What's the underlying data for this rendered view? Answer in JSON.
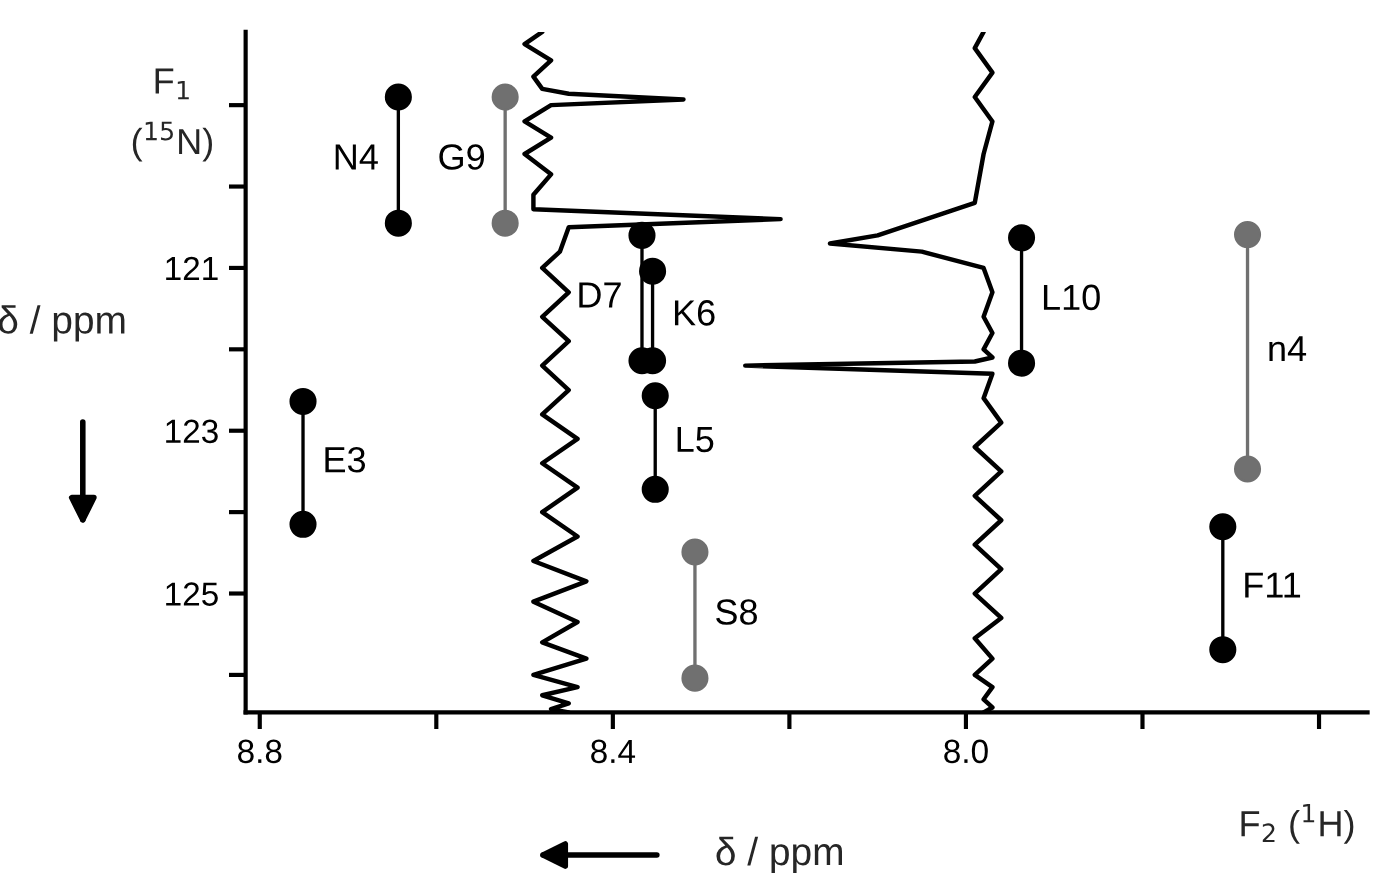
{
  "chart_data": {
    "type": "line",
    "xlabel": "δ / ppm",
    "ylabel": "δ / ppm",
    "xlim": [
      8.816,
      7.545
    ],
    "ylim": [
      126.46,
      118.1
    ],
    "xticks": [
      8.8,
      {
        "value": 8.6,
        "label": null
      },
      8.4,
      {
        "value": 8.2,
        "label": null
      },
      {
        "value": 8.0,
        "label": "8.0"
      },
      {
        "value": 7.8,
        "label": null
      },
      {
        "value": 7.6,
        "label": null
      }
    ],
    "yticks": [
      {
        "value": 119,
        "label": null
      },
      {
        "value": 120,
        "label": null
      },
      121,
      {
        "value": 122,
        "label": null
      },
      123,
      {
        "value": 124,
        "label": null
      },
      125,
      {
        "value": 126,
        "label": null
      }
    ],
    "series": [
      {
        "name": "N4",
        "color": "#000000",
        "marker": "circle",
        "x": [
          8.643,
          8.643
        ],
        "values": [
          118.9,
          120.45
        ]
      },
      {
        "name": "G9",
        "color": "#707070",
        "marker": "circle",
        "x": [
          8.522,
          8.522
        ],
        "values": [
          118.9,
          120.45
        ]
      },
      {
        "name": "E3",
        "color": "#000000",
        "marker": "circle",
        "x": [
          8.751,
          8.751
        ],
        "values": [
          122.64,
          124.15
        ]
      },
      {
        "name": "D7",
        "color": "#000000",
        "marker": "circle",
        "x": [
          8.367,
          8.367
        ],
        "values": [
          120.6,
          122.14
        ]
      },
      {
        "name": "K6",
        "color": "#000000",
        "marker": "circle",
        "x": [
          8.355,
          8.355
        ],
        "values": [
          121.04,
          122.14
        ]
      },
      {
        "name": "L5",
        "color": "#000000",
        "marker": "circle",
        "x": [
          8.352,
          8.352
        ],
        "values": [
          122.57,
          123.72
        ]
      },
      {
        "name": "S8",
        "color": "#707070",
        "marker": "circle",
        "x": [
          8.307,
          8.307
        ],
        "values": [
          124.49,
          126.04
        ]
      },
      {
        "name": "L10",
        "color": "#000000",
        "marker": "circle",
        "x": [
          7.937,
          7.937
        ],
        "values": [
          120.63,
          122.17
        ]
      },
      {
        "name": "n4",
        "color": "#707070",
        "marker": "circle",
        "x": [
          7.681,
          7.681
        ],
        "values": [
          120.59,
          123.47
        ]
      },
      {
        "name": "F11",
        "color": "#000000",
        "marker": "circle",
        "x": [
          7.709,
          7.709
        ],
        "values": [
          124.18,
          125.69
        ]
      },
      {
        "color": "#000000",
        "marker": "none",
        "x": [
          8.48,
          8.5,
          8.47,
          8.49,
          8.48,
          8.45,
          8.32,
          8.47,
          8.5,
          8.47,
          8.5,
          8.47,
          8.49,
          8.49,
          8.21,
          8.45,
          8.46,
          8.48,
          8.45,
          8.48,
          8.45,
          8.48,
          8.45,
          8.48,
          8.44,
          8.48,
          8.44,
          8.48,
          8.44,
          8.49,
          8.43,
          8.49,
          8.44,
          8.48,
          8.43,
          8.49,
          8.44,
          8.48,
          8.45,
          8.47,
          8.45
        ],
        "values": [
          118.1,
          118.25,
          118.45,
          118.65,
          118.8,
          118.86,
          118.93,
          119.0,
          119.2,
          119.4,
          119.6,
          119.85,
          120.1,
          120.28,
          120.4,
          120.5,
          120.8,
          121.0,
          121.3,
          121.6,
          121.9,
          122.2,
          122.5,
          122.8,
          123.1,
          123.4,
          123.7,
          124.0,
          124.3,
          124.6,
          124.85,
          125.1,
          125.35,
          125.6,
          125.8,
          126.0,
          126.15,
          126.25,
          126.35,
          126.42,
          126.46
        ]
      },
      {
        "color": "#000000",
        "marker": "none",
        "x": [
          7.98,
          7.99,
          7.97,
          7.99,
          7.97,
          7.98,
          7.99,
          8.1,
          8.154,
          8.05,
          7.98,
          7.97,
          7.98,
          7.97,
          7.98,
          7.97,
          7.99,
          8.25,
          7.97,
          7.98,
          7.96,
          7.99,
          7.96,
          7.99,
          7.96,
          7.99,
          7.96,
          7.99,
          7.96,
          7.99,
          7.97,
          7.99,
          7.97,
          7.98,
          7.97,
          7.98
        ],
        "values": [
          118.1,
          118.3,
          118.6,
          118.9,
          119.2,
          119.6,
          120.2,
          120.6,
          120.7,
          120.8,
          121.0,
          121.3,
          121.6,
          121.8,
          122.0,
          122.1,
          122.15,
          122.2,
          122.3,
          122.6,
          122.9,
          123.2,
          123.5,
          123.8,
          124.1,
          124.4,
          124.7,
          125.0,
          125.3,
          125.55,
          125.8,
          126.0,
          126.15,
          126.3,
          126.4,
          126.46
        ]
      }
    ],
    "annotations": [
      "F$_{1}$",
      "($^{15}$N)",
      "F$_{2}$ ($^{1}$H)"
    ]
  }
}
